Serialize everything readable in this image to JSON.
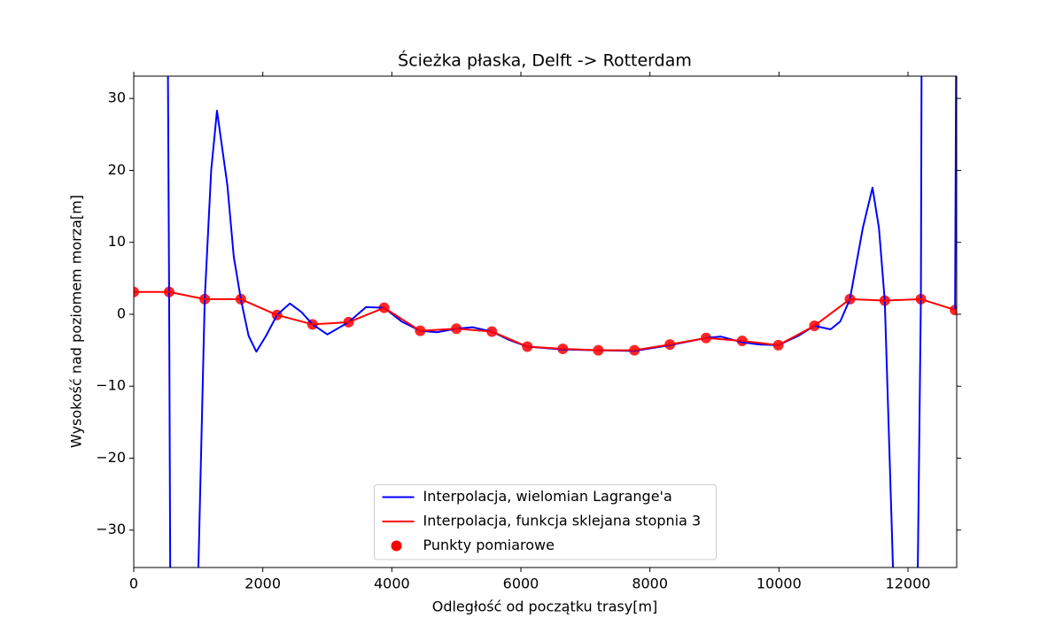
{
  "chart_data": {
    "type": "line",
    "title": "Ścieżka płaska, Delft -> Rotterdam",
    "x_label": "Odległość od początku trasy[m]",
    "y_label": "Wysokość nad poziomem morza[m]",
    "xlim": [
      0,
      12755
    ],
    "ylim": [
      -35.2,
      33.1
    ],
    "xticks": [
      0,
      2000,
      4000,
      6000,
      8000,
      10000,
      12000
    ],
    "yticks": [
      {
        "value": -30,
        "label": "−30"
      },
      {
        "value": -20,
        "label": "−20"
      },
      {
        "value": -10,
        "label": "−10"
      },
      0,
      10,
      20,
      30
    ],
    "legend": "lower center",
    "series": [
      {
        "name": "Interpolacja, wielomian Lagrange'a",
        "type": "line",
        "color": "#0000ff",
        "x": [
          530,
          548,
          565,
          null,
          1002,
          1100,
          1200,
          1290,
          1450,
          1550,
          1660,
          1780,
          1900,
          2050,
          2220,
          2420,
          2600,
          2770,
          3000,
          3330,
          3600,
          3880,
          4150,
          4440,
          4700,
          5000,
          5250,
          5550,
          5800,
          6100,
          6650,
          7200,
          7760,
          8310,
          8870,
          9100,
          9430,
          9700,
          9990,
          10300,
          10550,
          10800,
          10950,
          11100,
          11300,
          11450,
          11550,
          11640,
          11750,
          11767,
          null,
          12152,
          12200,
          12210,
          null,
          12730,
          12745
        ],
        "values": [
          33.1,
          3.1,
          -35.2,
          null,
          -35.2,
          2.1,
          20,
          28.3,
          18,
          8,
          2.1,
          -3,
          -5.2,
          -3,
          -0.1,
          1.5,
          0.3,
          -1.4,
          -2.8,
          -1.1,
          1.0,
          0.9,
          -1.0,
          -2.3,
          -2.5,
          -2.0,
          -1.8,
          -2.4,
          -3.5,
          -4.5,
          -4.9,
          -5.0,
          -5.1,
          -4.3,
          -3.3,
          -3.1,
          -3.9,
          -4.2,
          -4.3,
          -3.0,
          -1.6,
          -2.1,
          -1.0,
          2.1,
          12,
          17.6,
          12,
          1.9,
          -30,
          -35.2,
          null,
          -35.2,
          2.1,
          33.1,
          null,
          0.6,
          33.1
        ]
      },
      {
        "name": "Interpolacja, funkcja sklejana stopnia 3",
        "type": "line",
        "color": "#ff0000",
        "x": [
          0,
          548,
          1100,
          1660,
          2220,
          2770,
          3330,
          3880,
          4440,
          5000,
          5550,
          6100,
          6650,
          7200,
          7760,
          8310,
          8870,
          9430,
          9990,
          10550,
          11100,
          11640,
          12200,
          12730
        ],
        "values": [
          3.1,
          3.1,
          2.1,
          2.1,
          -0.1,
          -1.4,
          -1.1,
          0.9,
          -2.3,
          -2.0,
          -2.4,
          -4.5,
          -4.8,
          -5.0,
          -5.0,
          -4.2,
          -3.3,
          -3.7,
          -4.3,
          -1.6,
          2.1,
          1.9,
          2.1,
          0.6
        ]
      },
      {
        "name": "Punkty pomiarowe",
        "type": "scatter",
        "color": "#ff0000",
        "x": [
          0,
          548,
          1100,
          1660,
          2220,
          2770,
          3330,
          3880,
          4440,
          5000,
          5550,
          6100,
          6650,
          7200,
          7760,
          8310,
          8870,
          9430,
          9990,
          10550,
          11100,
          11640,
          12200,
          12730
        ],
        "values": [
          3.1,
          3.1,
          2.1,
          2.1,
          -0.1,
          -1.4,
          -1.1,
          0.9,
          -2.3,
          -2.0,
          -2.4,
          -4.5,
          -4.8,
          -5.0,
          -5.0,
          -4.2,
          -3.3,
          -3.7,
          -4.3,
          -1.6,
          2.1,
          1.9,
          2.1,
          0.6
        ]
      }
    ]
  }
}
